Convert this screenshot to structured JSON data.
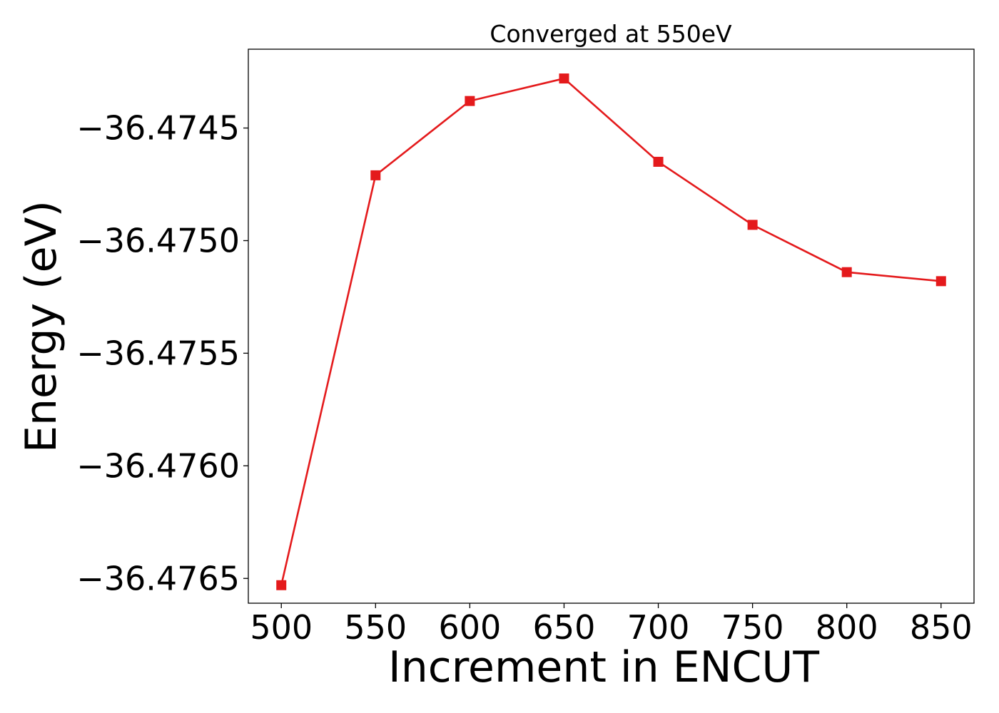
{
  "chart_data": {
    "type": "line",
    "title": "Converged at 550eV",
    "xlabel": "Increment in ENCUT",
    "ylabel": "Energy (eV)",
    "x": [
      500,
      550,
      600,
      650,
      700,
      750,
      800,
      850
    ],
    "series": [
      {
        "values": [
          -36.47653,
          -36.47471,
          -36.47438,
          -36.47428,
          -36.47465,
          -36.47493,
          -36.47514,
          -36.47518
        ],
        "color": "#e41a1c",
        "marker": "square"
      }
    ],
    "xticks": [
      500,
      550,
      600,
      650,
      700,
      750,
      800,
      850
    ],
    "xtick_labels": [
      "500",
      "550",
      "600",
      "650",
      "700",
      "750",
      "800",
      "850"
    ],
    "yticks": [
      -36.4745,
      -36.475,
      -36.4755,
      -36.476,
      -36.4765
    ],
    "ytick_labels": [
      "−36.4745",
      "−36.4750",
      "−36.4755",
      "−36.4760",
      "−36.4765"
    ],
    "xlim": [
      482.5,
      867.5
    ],
    "ylim": [
      -36.47661,
      -36.47415
    ],
    "grid": false,
    "legend": "none"
  }
}
